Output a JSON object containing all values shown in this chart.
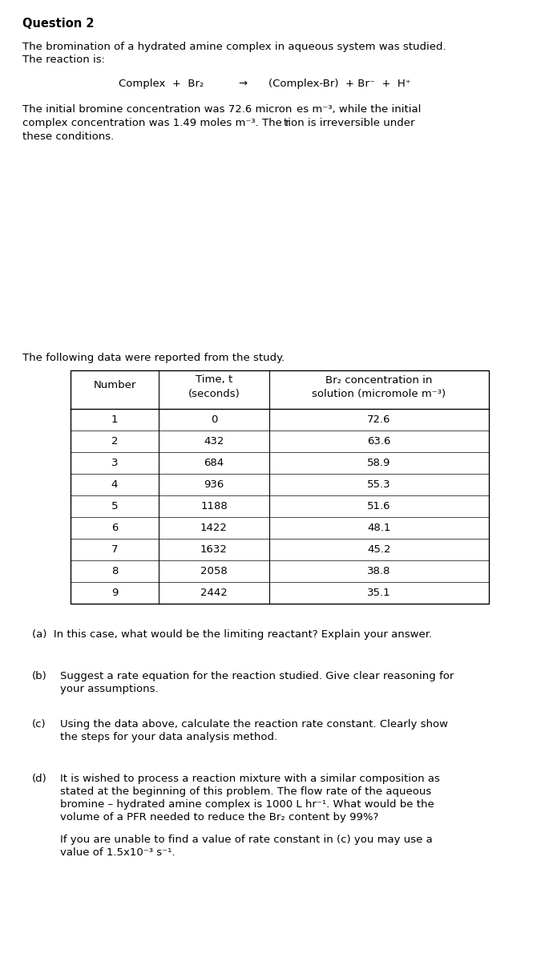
{
  "title": "Question 2",
  "intro_text1": "The bromination of a hydrated amine complex in aqueous system was studied.",
  "intro_text2": "The reaction is:",
  "reaction_left": "Complex  +  Br₂",
  "reaction_arrow": "→",
  "reaction_right": "(Complex-Br)  + Br⁻  +  H⁺",
  "param_text1": "The initial bromine concentration was 72.6 micron",
  "param_text1b": "es m⁻³, while the initial",
  "param_text2": "complex concentration was 1.49 moles m⁻³. The r",
  "param_text2b": "tion is irreversible under",
  "param_text3": "these conditions.",
  "data_intro": "The following data were reported from the study.",
  "table_numbers": [
    1,
    2,
    3,
    4,
    5,
    6,
    7,
    8,
    9
  ],
  "table_times": [
    0,
    432,
    684,
    936,
    1188,
    1422,
    1632,
    2058,
    2442
  ],
  "table_conc": [
    72.6,
    63.6,
    58.9,
    55.3,
    51.6,
    48.1,
    45.2,
    38.8,
    35.1
  ],
  "q_a": "(a)  In this case, what would be the limiting reactant? Explain your answer.",
  "q_b_label": "(b)",
  "q_b_text1": "Suggest a rate equation for the reaction studied. Give clear reasoning for",
  "q_b_text2": "your assumptions.",
  "q_c_label": "(c)",
  "q_c_text1": "Using the data above, calculate the reaction rate constant. Clearly show",
  "q_c_text2": "the steps for your data analysis method.",
  "q_d_label": "(d)",
  "q_d_text1": "It is wished to process a reaction mixture with a similar composition as",
  "q_d_text2": "stated at the beginning of this problem. The flow rate of the aqueous",
  "q_d_text3": "bromine – hydrated amine complex is 1000 L hr⁻¹. What would be the",
  "q_d_text4": "volume of a PFR needed to reduce the Br₂ content by 99%?",
  "q_d_text5": "If you are unable to find a value of rate constant in (c) you may use a",
  "q_d_text6": "value of 1.5x10⁻³ s⁻¹.",
  "bg_color": "#ffffff",
  "text_color": "#000000",
  "font_size": 9.5,
  "title_font_size": 10.5
}
